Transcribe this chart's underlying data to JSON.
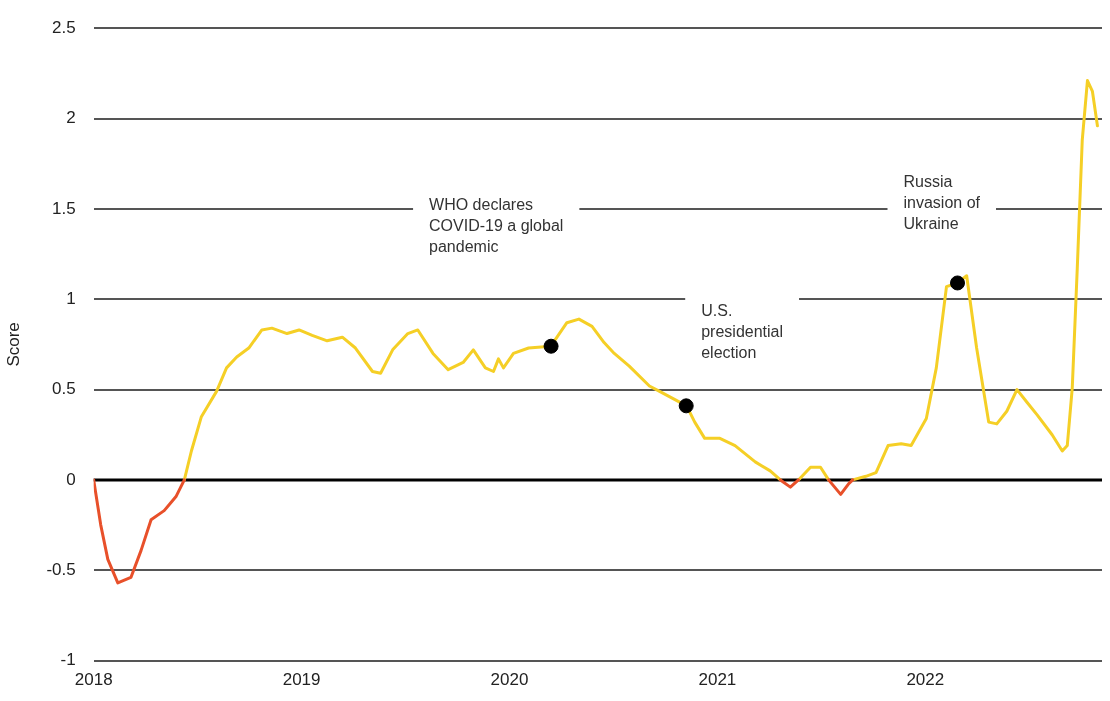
{
  "chart_data": {
    "type": "line",
    "ylabel": "Score",
    "xlim": [
      2018,
      2022.85
    ],
    "xticks": [
      2018,
      2019,
      2020,
      2021,
      2022
    ],
    "ylim": [
      -1,
      2.5
    ],
    "yticks": [
      -1,
      -0.5,
      0,
      0.5,
      1,
      1.5,
      2,
      2.5
    ],
    "grid": "y",
    "legend": false,
    "marker": "none",
    "line_style": "solid",
    "ref_lines": [
      {
        "axis": "y",
        "value": 0,
        "color": "#000000"
      }
    ],
    "annotations": [
      "WHO declares COVID-19 a global pandemic",
      "U.S. presidential election",
      "Russia invasion of Ukraine"
    ],
    "series": [
      {
        "color": "#e8502a",
        "x": [
          2018,
          2018.034,
          2018.068,
          2018.116,
          2018.179,
          2018.228,
          2018.276,
          2018.339,
          2018.397,
          2018.436,
          2019.5,
          2021.303,
          2021.351,
          2021.39,
          2021.45,
          2021.535,
          2021.593,
          2021.632,
          2021.651
        ],
        "values": [
          0,
          -0.25,
          -0.44,
          -0.57,
          -0.54,
          -0.39,
          -0.22,
          -0.17,
          -0.09,
          0,
          null,
          0,
          -0.04,
          0,
          null,
          0,
          -0.08,
          -0.02,
          0
        ]
      },
      {
        "color": "#f5cf26",
        "x": [
          2018.436,
          2018.47,
          2018.518,
          2018.591,
          2018.639,
          2018.688,
          2018.746,
          2018.809,
          2018.857,
          2018.93,
          2018.988,
          2019.051,
          2019.123,
          2019.196,
          2019.259,
          2019.341,
          2019.38,
          2019.438,
          2019.511,
          2019.559,
          2019.632,
          2019.705,
          2019.777,
          2019.826,
          2019.884,
          2019.923,
          2019.947,
          2019.971,
          2020.019,
          2020.092,
          2020.199,
          2020.276,
          2020.334,
          2020.397,
          2020.455,
          2020.504,
          2020.576,
          2020.673,
          2020.722,
          2020.852,
          2020.891,
          2020.939,
          2021.012,
          2021.085,
          2021.182,
          2021.254,
          2021.303,
          2021.35,
          2021.39,
          2021.448,
          2021.496,
          2021.535,
          2021.6,
          2021.651,
          2021.714,
          2021.763,
          2021.821,
          2021.884,
          2021.932,
          2022.005,
          2022.053,
          2022.102,
          2022.155,
          2022.199,
          2022.247,
          2022.305,
          2022.344,
          2022.392,
          2022.441,
          2022.489,
          2022.538,
          2022.61,
          2022.659,
          2022.683,
          2022.707,
          2022.731,
          2022.755,
          2022.78,
          2022.804,
          2022.828
        ],
        "values": [
          0,
          0.16,
          0.35,
          0.49,
          0.62,
          0.68,
          0.73,
          0.83,
          0.84,
          0.81,
          0.83,
          0.8,
          0.77,
          0.79,
          0.73,
          0.6,
          0.59,
          0.72,
          0.81,
          0.83,
          0.7,
          0.61,
          0.65,
          0.72,
          0.62,
          0.6,
          0.67,
          0.62,
          0.7,
          0.73,
          0.74,
          0.87,
          0.89,
          0.85,
          0.76,
          0.7,
          0.63,
          0.52,
          0.49,
          0.41,
          0.32,
          0.23,
          0.23,
          0.19,
          0.1,
          0.05,
          0,
          null,
          0,
          0.07,
          0.07,
          0,
          null,
          0,
          0.02,
          0.04,
          0.19,
          0.2,
          0.19,
          0.34,
          0.62,
          1.07,
          1.09,
          1.13,
          0.73,
          0.32,
          0.31,
          0.38,
          0.5,
          0.43,
          0.36,
          0.25,
          0.16,
          0.19,
          0.51,
          1.17,
          1.88,
          2.21,
          2.15,
          1.96
        ]
      },
      {
        "type": "scatter",
        "color": "#000000",
        "marker": "circle",
        "x": [
          2020.2,
          2020.85,
          2022.155
        ],
        "values": [
          0.74,
          0.41,
          1.09
        ]
      }
    ]
  }
}
